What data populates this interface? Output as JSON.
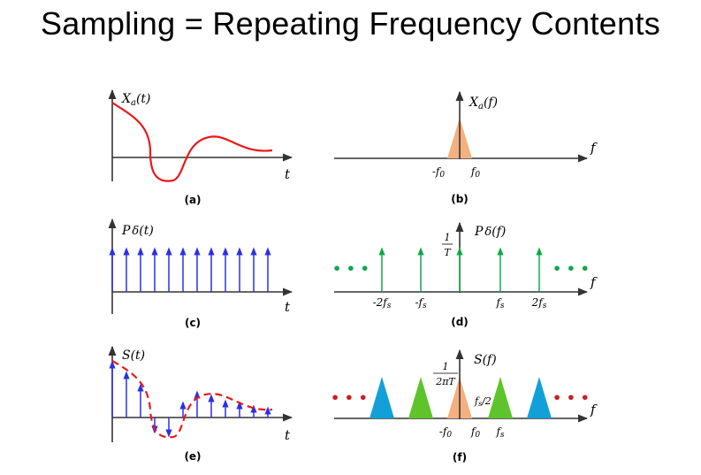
{
  "title": "Sampling = Repeating Frequency Contents",
  "panels": {
    "a": {
      "caption": "(a)",
      "ylabel": "X",
      "ylabel_sub": "a",
      "ylabel_arg": "(t)",
      "xlabel": "t"
    },
    "b": {
      "caption": "(b)",
      "ylabel": "X",
      "ylabel_sub": "a",
      "ylabel_arg": "(f)",
      "xlabel": "f",
      "ticks": {
        "neg": "-f",
        "neg_sub": "0",
        "pos": "f",
        "pos_sub": "0"
      }
    },
    "c": {
      "caption": "(c)",
      "ylabel": "P",
      "ylabel_sym": "δ",
      "ylabel_arg": "(t)",
      "xlabel": "t"
    },
    "d": {
      "caption": "(d)",
      "ylabel": "P",
      "ylabel_sym": "δ",
      "ylabel_arg": "(f)",
      "xlabel": "f",
      "amp_num": "1",
      "amp_den": "T",
      "ellipsis": "• • •",
      "ticks": [
        "-2f",
        "-f",
        "f",
        "2f"
      ],
      "tick_sub": "s"
    },
    "e": {
      "caption": "(e)",
      "ylabel": "S(t)",
      "xlabel": "t"
    },
    "f": {
      "caption": "(f)",
      "ylabel": "S(f)",
      "xlabel": "f",
      "amp_num": "1",
      "amp_den": "2πT",
      "ellipsis": "• • •",
      "ticks": {
        "neg": "-f",
        "neg_sub": "0",
        "pos": "f",
        "pos_sub": "0",
        "fs": "f",
        "fs_sub": "s",
        "half": "f",
        "half_sub": "s",
        "half_tail": "/2"
      }
    }
  },
  "colors": {
    "signal": "#e8191c",
    "impulse_blue": "#2b30e6",
    "impulse_green": "#10a84c",
    "dots_green": "#10a84c",
    "dots_red": "#c81f26",
    "spectrum_center": "#f5b07f",
    "spectrum_blue": "#13a0d8",
    "spectrum_green": "#5fc42b",
    "axis": "#333333"
  },
  "icons": [
    "arrowhead"
  ]
}
